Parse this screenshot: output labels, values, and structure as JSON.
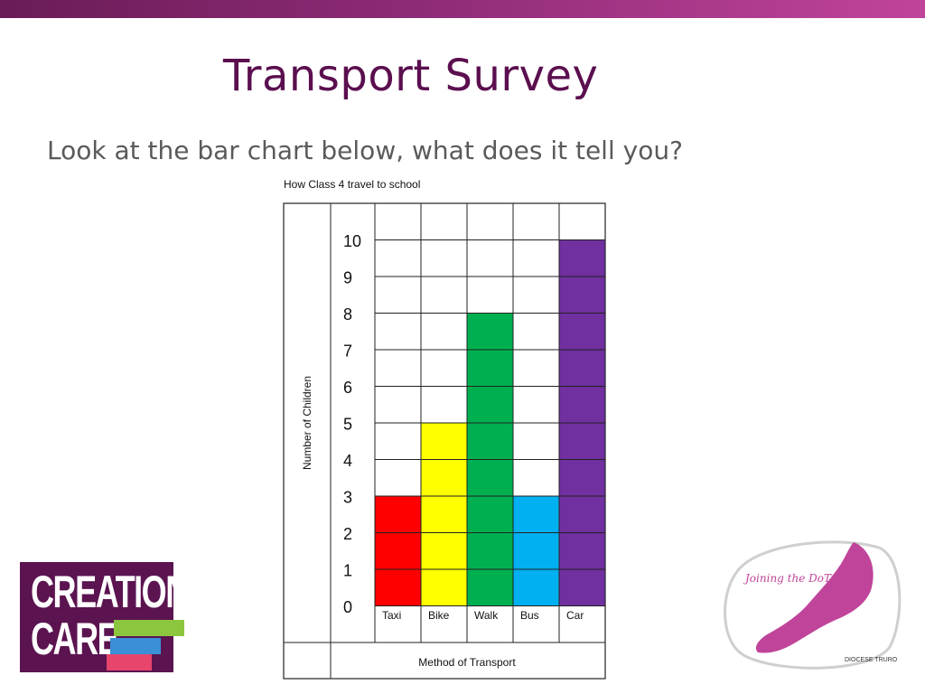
{
  "slide": {
    "title": "Transport Survey",
    "subtitle": "Look at the bar chart below, what does it tell you?"
  },
  "chart_data": {
    "type": "bar",
    "title": "How Class 4 travel to school",
    "xlabel": "Method of Transport",
    "ylabel": "Number of Children",
    "categories": [
      "Taxi",
      "Bike",
      "Walk",
      "Bus",
      "Car"
    ],
    "values": [
      3,
      5,
      8,
      3,
      10
    ],
    "colors": [
      "#ff0000",
      "#ffff00",
      "#00b050",
      "#00b0f0",
      "#7030a0"
    ],
    "ylim": [
      0,
      10
    ],
    "yticks": [
      0,
      1,
      2,
      3,
      4,
      5,
      6,
      7,
      8,
      9,
      10
    ],
    "grid": true
  },
  "logos": {
    "creation_care": {
      "line1": "CREATION",
      "line2": "CARE",
      "colors": [
        "#5b1450",
        "#8cc63f",
        "#3a8fd6",
        "#e8456d"
      ]
    },
    "joining_dots": {
      "text": "Joining the DoTS",
      "org": "DIOCESE TRURO",
      "color": "#c0449a"
    }
  }
}
